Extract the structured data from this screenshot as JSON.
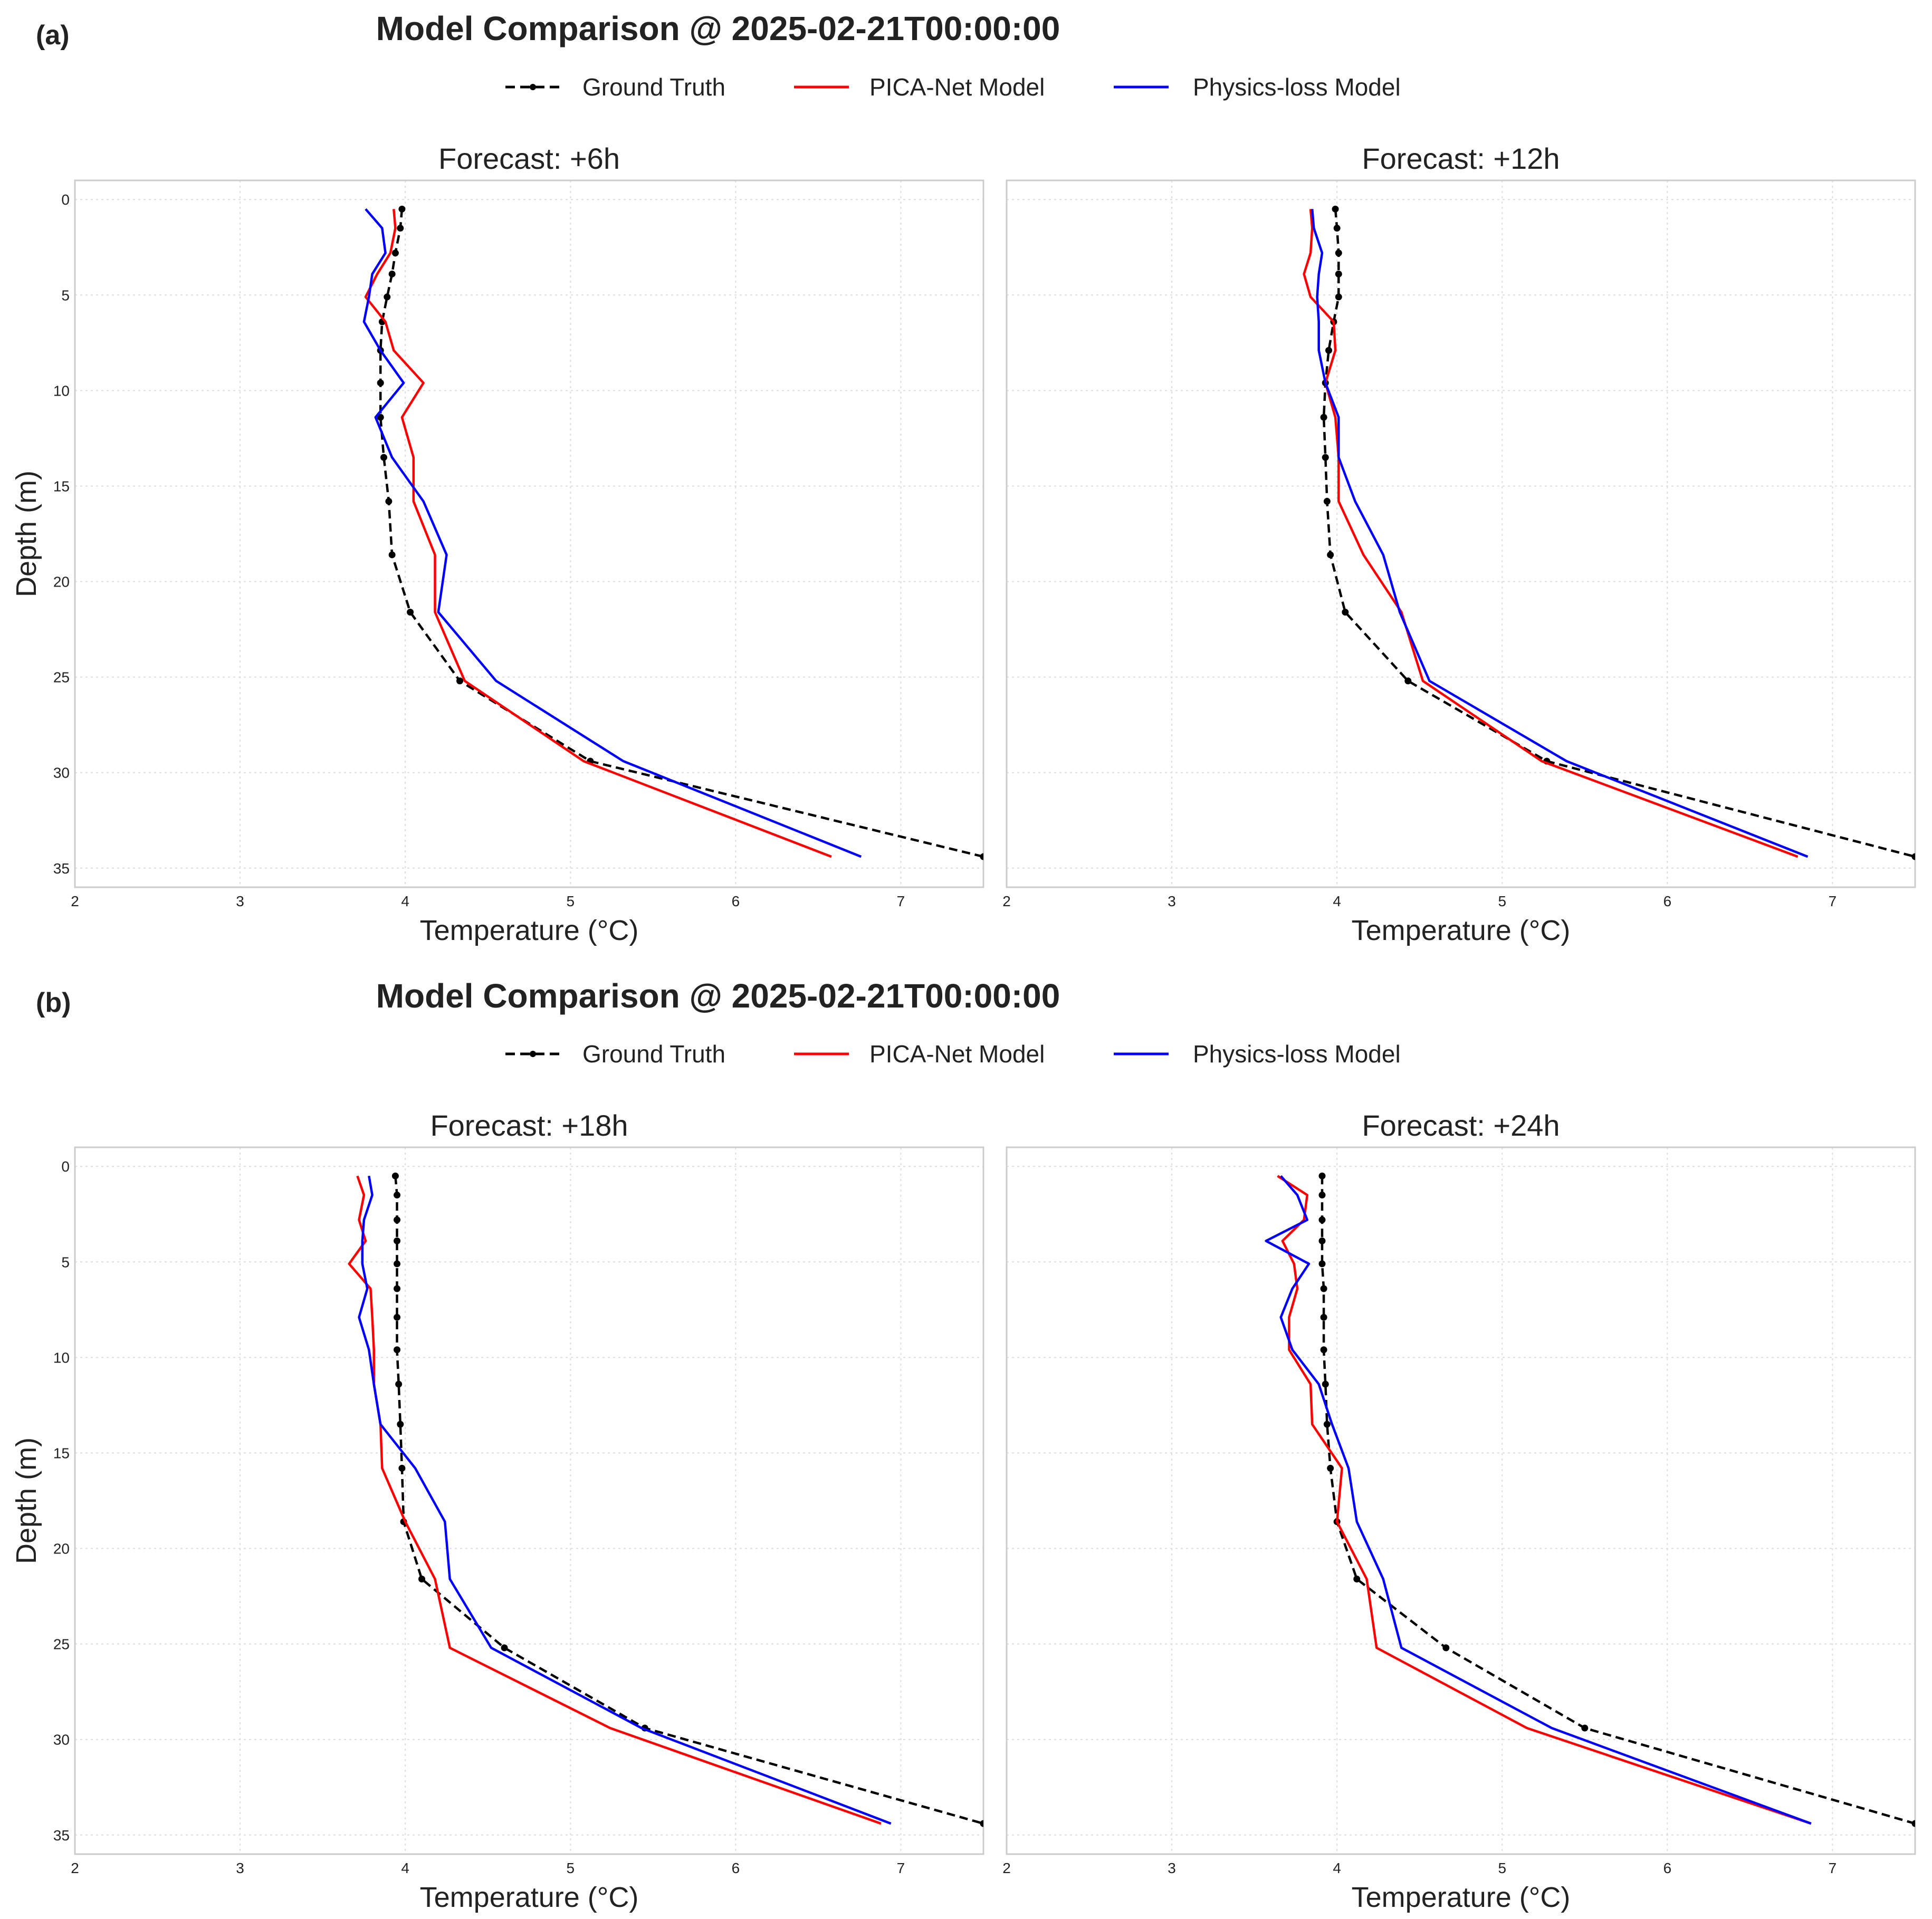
{
  "panels": [
    {
      "letter": "(a)",
      "suptitle": "Model Comparison @ 2025-02-21T00:00:00"
    },
    {
      "letter": "(b)",
      "suptitle": "Model Comparison @ 2025-02-21T00:00:00"
    }
  ],
  "legend": {
    "ground_truth": "Ground Truth",
    "pica": "PICA-Net Model",
    "physics": "Physics-loss Model"
  },
  "colors": {
    "ground_truth": "#000000",
    "pica": "#ff0000",
    "physics": "#0000ff"
  },
  "chart_data": [
    {
      "type": "line",
      "title": "Forecast: +6h",
      "xlabel": "Temperature (°C)",
      "ylabel": "Depth (m)",
      "xlim": [
        2,
        7.5
      ],
      "ylim": [
        36,
        -1
      ],
      "xticks": [
        2,
        3,
        4,
        5,
        6,
        7
      ],
      "yticks": [
        0,
        5,
        10,
        15,
        20,
        25,
        30,
        35
      ],
      "grid": true,
      "series": [
        {
          "name": "Ground Truth",
          "depth": [
            0.5,
            1.5,
            2.8,
            3.9,
            5.1,
            6.4,
            7.9,
            9.6,
            11.4,
            13.5,
            15.8,
            18.6,
            21.6,
            25.2,
            29.4,
            34.4
          ],
          "temp": [
            3.98,
            3.97,
            3.94,
            3.92,
            3.89,
            3.86,
            3.85,
            3.85,
            3.85,
            3.87,
            3.9,
            3.92,
            4.03,
            4.33,
            5.12,
            7.5
          ]
        },
        {
          "name": "PICA-Net Model",
          "depth": [
            0.5,
            1.5,
            2.8,
            3.9,
            5.1,
            6.4,
            7.9,
            9.6,
            11.4,
            13.5,
            15.8,
            18.6,
            21.6,
            25.2,
            29.4,
            34.4
          ],
          "temp": [
            3.93,
            3.94,
            3.91,
            3.83,
            3.76,
            3.88,
            3.93,
            4.11,
            3.98,
            4.05,
            4.05,
            4.18,
            4.18,
            4.36,
            5.08,
            6.58
          ]
        },
        {
          "name": "Physics-loss Model",
          "depth": [
            0.5,
            1.5,
            2.8,
            3.9,
            5.1,
            6.4,
            7.9,
            9.6,
            11.4,
            13.5,
            15.8,
            18.6,
            21.6,
            25.2,
            29.4,
            34.4
          ],
          "temp": [
            3.76,
            3.86,
            3.88,
            3.8,
            3.78,
            3.75,
            3.85,
            3.99,
            3.82,
            3.92,
            4.11,
            4.25,
            4.2,
            4.55,
            5.32,
            6.76
          ]
        }
      ]
    },
    {
      "type": "line",
      "title": "Forecast: +12h",
      "xlabel": "Temperature (°C)",
      "ylabel": "",
      "xlim": [
        2,
        7.5
      ],
      "ylim": [
        36,
        -1
      ],
      "xticks": [
        2,
        3,
        4,
        5,
        6,
        7
      ],
      "yticks": [],
      "grid": true,
      "series": [
        {
          "name": "Ground Truth",
          "depth": [
            0.5,
            1.5,
            2.8,
            3.9,
            5.1,
            6.4,
            7.9,
            9.6,
            11.4,
            13.5,
            15.8,
            18.6,
            21.6,
            25.2,
            29.4,
            34.4
          ],
          "temp": [
            3.99,
            4.0,
            4.01,
            4.01,
            4.01,
            3.98,
            3.95,
            3.93,
            3.92,
            3.93,
            3.94,
            3.96,
            4.05,
            4.43,
            5.27,
            7.5
          ]
        },
        {
          "name": "PICA-Net Model",
          "depth": [
            0.5,
            1.5,
            2.8,
            3.9,
            5.1,
            6.4,
            7.9,
            9.6,
            11.4,
            13.5,
            15.8,
            18.6,
            21.6,
            25.2,
            29.4,
            34.4
          ],
          "temp": [
            3.84,
            3.85,
            3.84,
            3.8,
            3.84,
            3.98,
            3.99,
            3.93,
            3.99,
            4.01,
            4.01,
            4.16,
            4.39,
            4.52,
            5.24,
            6.79
          ]
        },
        {
          "name": "Physics-loss Model",
          "depth": [
            0.5,
            1.5,
            2.8,
            3.9,
            5.1,
            6.4,
            7.9,
            9.6,
            11.4,
            13.5,
            15.8,
            18.6,
            21.6,
            25.2,
            29.4,
            34.4
          ],
          "temp": [
            3.85,
            3.86,
            3.91,
            3.89,
            3.88,
            3.89,
            3.89,
            3.93,
            4.01,
            4.01,
            4.11,
            4.28,
            4.38,
            4.56,
            5.39,
            6.85
          ]
        }
      ]
    },
    {
      "type": "line",
      "title": "Forecast: +18h",
      "xlabel": "Temperature (°C)",
      "ylabel": "Depth (m)",
      "xlim": [
        2,
        7.5
      ],
      "ylim": [
        36,
        -1
      ],
      "xticks": [
        2,
        3,
        4,
        5,
        6,
        7
      ],
      "yticks": [
        0,
        5,
        10,
        15,
        20,
        25,
        30,
        35
      ],
      "grid": true,
      "series": [
        {
          "name": "Ground Truth",
          "depth": [
            0.5,
            1.5,
            2.8,
            3.9,
            5.1,
            6.4,
            7.9,
            9.6,
            11.4,
            13.5,
            15.8,
            18.6,
            21.6,
            25.2,
            29.4,
            34.4
          ],
          "temp": [
            3.94,
            3.95,
            3.95,
            3.95,
            3.95,
            3.95,
            3.95,
            3.95,
            3.96,
            3.97,
            3.98,
            3.99,
            4.1,
            4.6,
            5.45,
            7.5
          ]
        },
        {
          "name": "PICA-Net Model",
          "depth": [
            0.5,
            1.5,
            2.8,
            3.9,
            5.1,
            6.4,
            7.9,
            9.6,
            11.4,
            13.5,
            15.8,
            18.6,
            21.6,
            25.2,
            29.4,
            34.4
          ],
          "temp": [
            3.71,
            3.75,
            3.72,
            3.76,
            3.66,
            3.79,
            3.8,
            3.81,
            3.81,
            3.85,
            3.86,
            4.0,
            4.18,
            4.27,
            5.24,
            6.88
          ]
        },
        {
          "name": "Physics-loss Model",
          "depth": [
            0.5,
            1.5,
            2.8,
            3.9,
            5.1,
            6.4,
            7.9,
            9.6,
            11.4,
            13.5,
            15.8,
            18.6,
            21.6,
            25.2,
            29.4,
            34.4
          ],
          "temp": [
            3.78,
            3.8,
            3.75,
            3.74,
            3.74,
            3.77,
            3.72,
            3.78,
            3.81,
            3.85,
            4.06,
            4.24,
            4.27,
            4.52,
            5.43,
            6.94
          ]
        }
      ]
    },
    {
      "type": "line",
      "title": "Forecast: +24h",
      "xlabel": "Temperature (°C)",
      "ylabel": "",
      "xlim": [
        2,
        7.5
      ],
      "ylim": [
        36,
        -1
      ],
      "xticks": [
        2,
        3,
        4,
        5,
        6,
        7
      ],
      "yticks": [],
      "grid": true,
      "series": [
        {
          "name": "Ground Truth",
          "depth": [
            0.5,
            1.5,
            2.8,
            3.9,
            5.1,
            6.4,
            7.9,
            9.6,
            11.4,
            13.5,
            15.8,
            18.6,
            21.6,
            25.2,
            29.4,
            34.4
          ],
          "temp": [
            3.91,
            3.91,
            3.91,
            3.91,
            3.91,
            3.92,
            3.92,
            3.92,
            3.93,
            3.94,
            3.96,
            4.0,
            4.12,
            4.66,
            5.5,
            7.5
          ]
        },
        {
          "name": "PICA-Net Model",
          "depth": [
            0.5,
            1.5,
            2.8,
            3.9,
            5.1,
            6.4,
            7.9,
            9.6,
            11.4,
            13.5,
            15.8,
            18.6,
            21.6,
            25.2,
            29.4,
            34.4
          ],
          "temp": [
            3.64,
            3.82,
            3.8,
            3.67,
            3.74,
            3.76,
            3.71,
            3.71,
            3.84,
            3.85,
            4.03,
            4.0,
            4.18,
            4.24,
            5.15,
            6.87
          ]
        },
        {
          "name": "Physics-loss Model",
          "depth": [
            0.5,
            1.5,
            2.8,
            3.9,
            5.1,
            6.4,
            7.9,
            9.6,
            11.4,
            13.5,
            15.8,
            18.6,
            21.6,
            25.2,
            29.4,
            34.4
          ],
          "temp": [
            3.66,
            3.76,
            3.82,
            3.57,
            3.83,
            3.73,
            3.66,
            3.73,
            3.89,
            3.97,
            4.07,
            4.12,
            4.28,
            4.39,
            5.3,
            6.87
          ]
        }
      ]
    }
  ]
}
